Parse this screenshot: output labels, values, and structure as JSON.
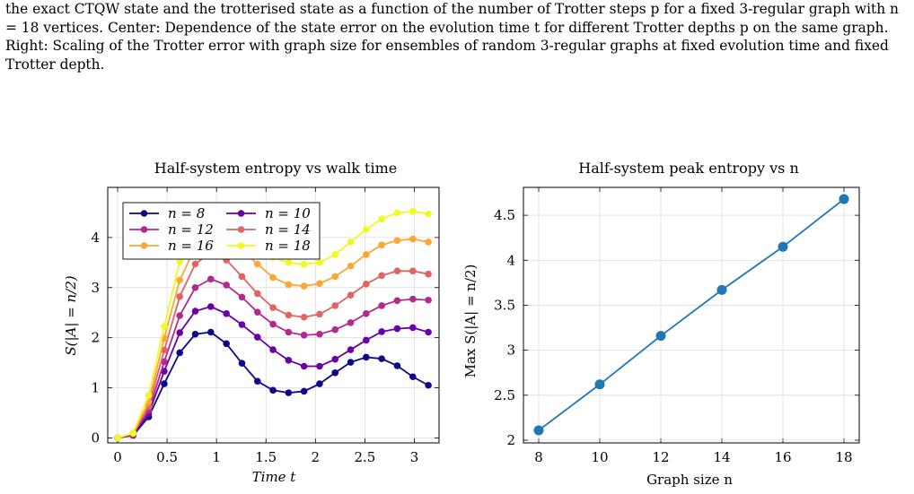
{
  "caption": {
    "text": "the exact CTQW state and the trotterised state as a function of the number of Trotter steps p for a fixed 3-regular graph with n = 18 vertices. Center: Dependence of the state error on the evolution time t for different Trotter depths p on the same graph. Right: Scaling of the Trotter error with graph size for ensembles of random 3-regular graphs at fixed evolution time and fixed Trotter depth."
  },
  "chart_data": [
    {
      "type": "line",
      "title": "Half-system entropy vs walk time",
      "xlabel": "Time t",
      "ylabel": "S(|A| = n/2)",
      "xlim": [
        -0.1,
        3.25
      ],
      "ylim": [
        -0.1,
        5.0
      ],
      "xticks": [
        0,
        0.5,
        1,
        1.5,
        2,
        2.5,
        3
      ],
      "xtick_labels": [
        "0",
        "0.5",
        "1",
        "1.5",
        "2",
        "2.5",
        "3"
      ],
      "yticks": [
        0,
        1,
        2,
        3,
        4
      ],
      "ytick_labels": [
        "0",
        "1",
        "2",
        "3",
        "4"
      ],
      "grid": true,
      "legend_position": "top-left",
      "x": [
        0,
        0.157,
        0.314,
        0.471,
        0.628,
        0.785,
        0.942,
        1.1,
        1.257,
        1.414,
        1.571,
        1.728,
        1.885,
        2.042,
        2.199,
        2.356,
        2.513,
        2.67,
        2.827,
        2.985,
        3.142
      ],
      "series": [
        {
          "name": "n = 8",
          "color": "#0d0887",
          "values": [
            0.0,
            0.05,
            0.42,
            1.08,
            1.7,
            2.07,
            2.11,
            1.88,
            1.49,
            1.13,
            0.95,
            0.9,
            0.93,
            1.08,
            1.3,
            1.51,
            1.61,
            1.58,
            1.44,
            1.22,
            1.05
          ]
        },
        {
          "name": "n = 10",
          "color": "#6a00a8",
          "values": [
            0.0,
            0.06,
            0.48,
            1.33,
            2.1,
            2.53,
            2.62,
            2.48,
            2.26,
            2.01,
            1.76,
            1.55,
            1.43,
            1.43,
            1.57,
            1.76,
            1.95,
            2.12,
            2.18,
            2.2,
            2.11
          ]
        },
        {
          "name": "n = 12",
          "color": "#b12a90",
          "values": [
            0.0,
            0.07,
            0.55,
            1.52,
            2.44,
            3.0,
            3.17,
            3.05,
            2.81,
            2.51,
            2.27,
            2.11,
            2.05,
            2.07,
            2.16,
            2.3,
            2.48,
            2.64,
            2.74,
            2.77,
            2.75
          ]
        },
        {
          "name": "n = 14",
          "color": "#e16462",
          "values": [
            0.0,
            0.08,
            0.63,
            1.75,
            2.82,
            3.47,
            3.7,
            3.55,
            3.22,
            2.88,
            2.6,
            2.45,
            2.41,
            2.47,
            2.64,
            2.85,
            3.07,
            3.24,
            3.33,
            3.33,
            3.27
          ]
        },
        {
          "name": "n = 16",
          "color": "#fca636",
          "values": [
            0.0,
            0.09,
            0.72,
            1.99,
            3.15,
            3.8,
            3.95,
            3.9,
            3.75,
            3.47,
            3.2,
            3.06,
            3.03,
            3.08,
            3.22,
            3.43,
            3.66,
            3.85,
            3.94,
            3.97,
            3.91
          ]
        },
        {
          "name": "n = 18",
          "color": "#f0f921",
          "values": [
            0.0,
            0.1,
            0.85,
            2.22,
            3.52,
            4.05,
            4.1,
            4.05,
            3.92,
            3.75,
            3.6,
            3.5,
            3.46,
            3.5,
            3.66,
            3.91,
            4.16,
            4.37,
            4.49,
            4.52,
            4.47
          ]
        }
      ]
    },
    {
      "type": "line",
      "title": "Half-system peak entropy vs n",
      "xlabel": "Graph size n",
      "ylabel": "Max S(|A| = n/2)",
      "xlim": [
        7.5,
        18.5
      ],
      "ylim": [
        1.97,
        4.81
      ],
      "xticks": [
        8,
        10,
        12,
        14,
        16,
        18
      ],
      "xtick_labels": [
        "8",
        "10",
        "12",
        "14",
        "16",
        "18"
      ],
      "yticks": [
        2,
        2.5,
        3,
        3.5,
        4,
        4.5
      ],
      "ytick_labels": [
        "2",
        "2.5",
        "3",
        "3.5",
        "4",
        "4.5"
      ],
      "grid": true,
      "x": [
        8,
        10,
        12,
        14,
        16,
        18
      ],
      "series": [
        {
          "color": "#1f77b4",
          "values": [
            2.11,
            2.62,
            3.16,
            3.67,
            4.15,
            4.68
          ]
        }
      ]
    }
  ]
}
